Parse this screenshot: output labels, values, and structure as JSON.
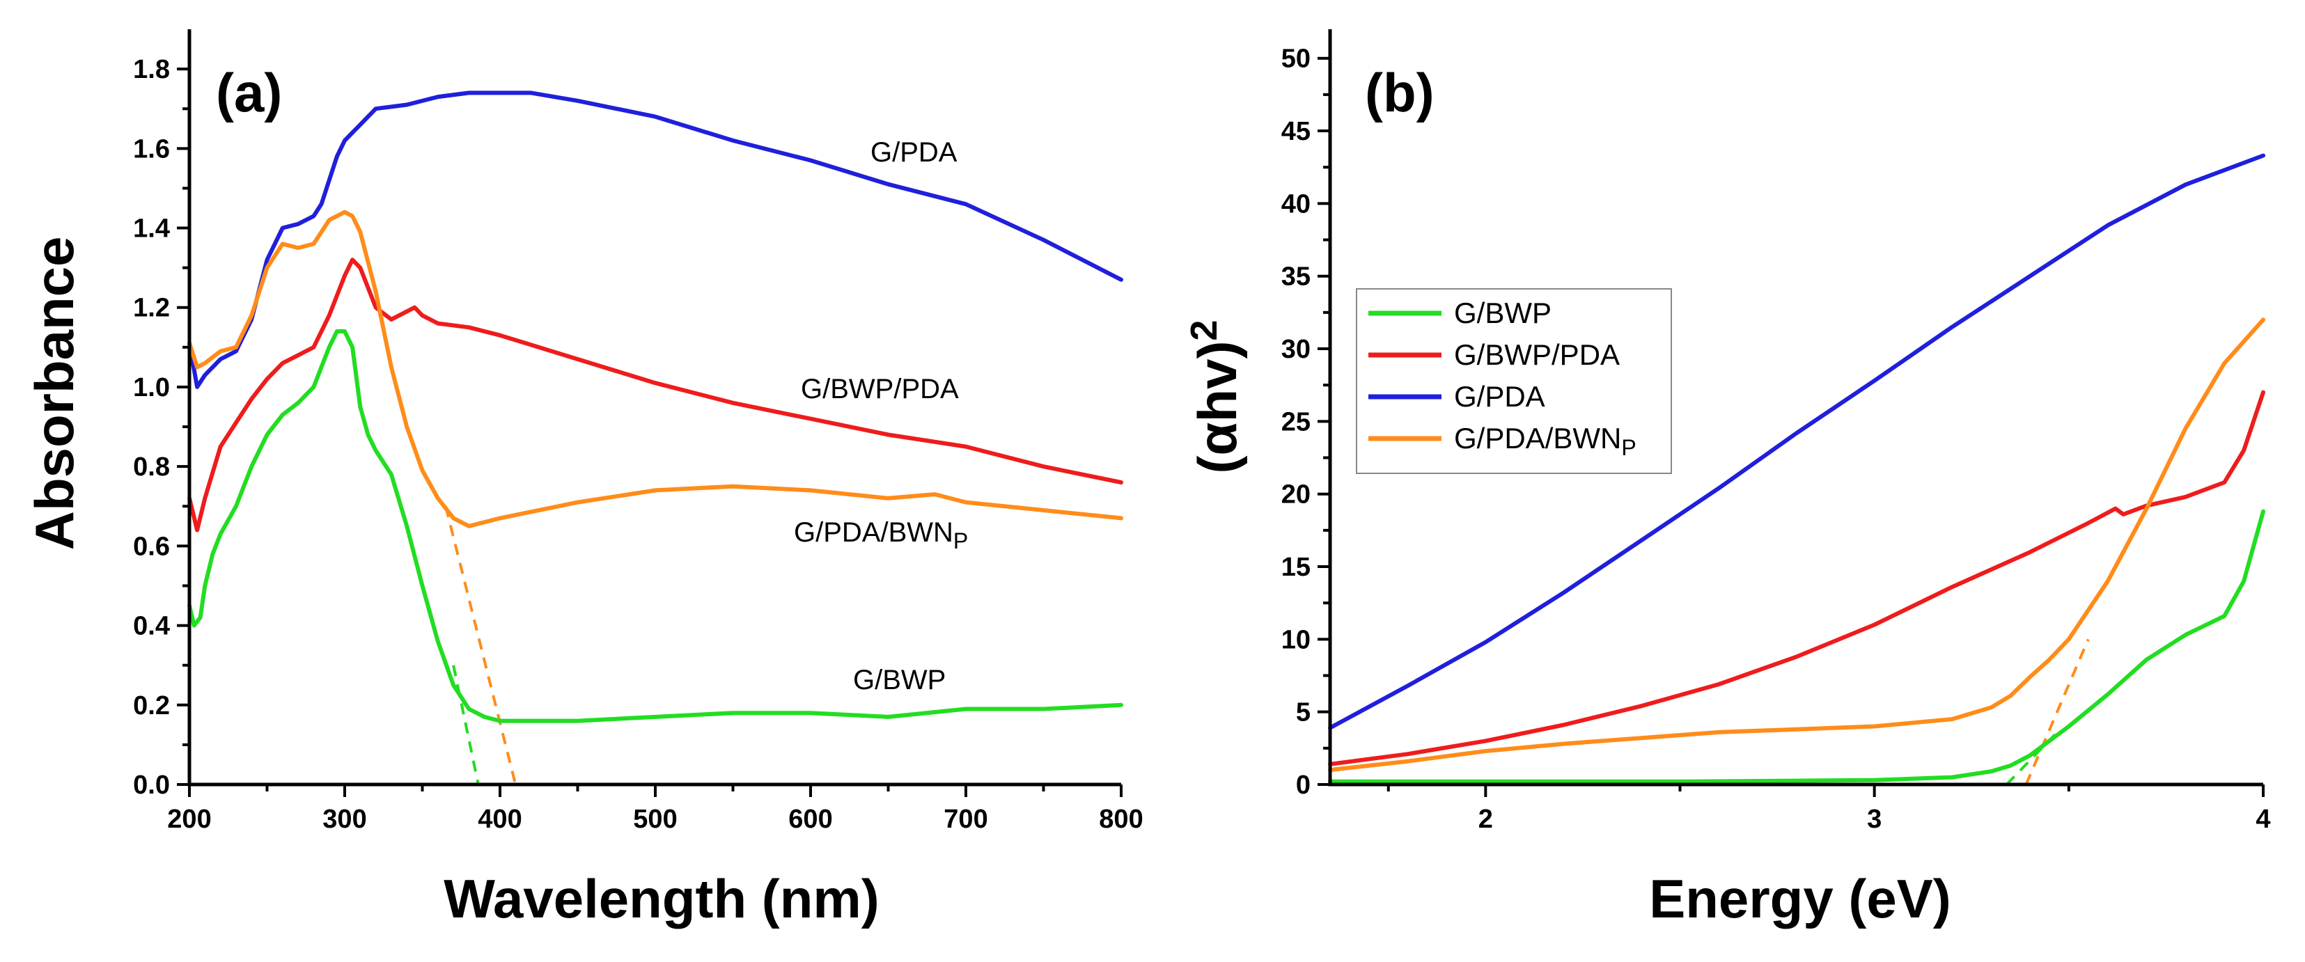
{
  "chart_data": [
    {
      "type": "line",
      "panel": "(a)",
      "xlabel": "Wavelength (nm)",
      "ylabel": "Absorbance",
      "xlim": [
        200,
        800
      ],
      "ylim": [
        0,
        1.9
      ],
      "xticks": [
        200,
        300,
        400,
        500,
        600,
        700,
        800
      ],
      "yticks": [
        0.0,
        0.2,
        0.4,
        0.6,
        0.8,
        1.0,
        1.2,
        1.4,
        1.6,
        1.8
      ],
      "xtick_labels": [
        "200",
        "300",
        "400",
        "500",
        "600",
        "700",
        "800"
      ],
      "ytick_labels": [
        "0.0",
        "0.2",
        "0.4",
        "0.6",
        "0.8",
        "1.0",
        "1.2",
        "1.4",
        "1.6",
        "1.8"
      ],
      "series": [
        {
          "name": "G/PDA",
          "label": "G/PDA",
          "color": "#1f1fdc",
          "x": [
            200,
            205,
            210,
            220,
            230,
            240,
            250,
            260,
            270,
            280,
            285,
            290,
            295,
            300,
            310,
            320,
            340,
            360,
            380,
            400,
            420,
            450,
            500,
            550,
            600,
            650,
            700,
            750,
            800
          ],
          "y": [
            1.11,
            1.0,
            1.03,
            1.07,
            1.09,
            1.17,
            1.32,
            1.4,
            1.41,
            1.43,
            1.46,
            1.52,
            1.58,
            1.62,
            1.66,
            1.7,
            1.71,
            1.73,
            1.74,
            1.74,
            1.74,
            1.72,
            1.68,
            1.62,
            1.57,
            1.51,
            1.46,
            1.37,
            1.27
          ]
        },
        {
          "name": "G/BWP/PDA",
          "label": "G/BWP/PDA",
          "color": "#ee1c1c",
          "x": [
            200,
            205,
            210,
            220,
            230,
            240,
            250,
            260,
            270,
            280,
            290,
            300,
            305,
            310,
            320,
            330,
            340,
            345,
            350,
            360,
            380,
            400,
            450,
            500,
            550,
            600,
            650,
            700,
            750,
            800
          ],
          "y": [
            0.72,
            0.64,
            0.72,
            0.85,
            0.91,
            0.97,
            1.02,
            1.06,
            1.08,
            1.1,
            1.18,
            1.28,
            1.32,
            1.3,
            1.2,
            1.17,
            1.19,
            1.2,
            1.18,
            1.16,
            1.15,
            1.13,
            1.07,
            1.01,
            0.96,
            0.92,
            0.88,
            0.85,
            0.8,
            0.76
          ]
        },
        {
          "name": "G/PDA/BWNP",
          "label": "G/PDA/BWN",
          "label_sub": "P",
          "color": "#ff8c1a",
          "x": [
            200,
            205,
            210,
            220,
            230,
            240,
            250,
            260,
            270,
            280,
            290,
            300,
            305,
            310,
            320,
            330,
            340,
            350,
            360,
            370,
            380,
            390,
            400,
            450,
            500,
            550,
            600,
            650,
            680,
            700,
            750,
            800
          ],
          "y": [
            1.11,
            1.05,
            1.06,
            1.09,
            1.1,
            1.18,
            1.3,
            1.36,
            1.35,
            1.36,
            1.42,
            1.44,
            1.43,
            1.39,
            1.24,
            1.05,
            0.9,
            0.79,
            0.72,
            0.67,
            0.65,
            0.66,
            0.67,
            0.71,
            0.74,
            0.75,
            0.74,
            0.72,
            0.73,
            0.71,
            0.69,
            0.67
          ]
        },
        {
          "name": "G/BWP",
          "label": "G/BWP",
          "color": "#22dd22",
          "x": [
            200,
            203,
            207,
            210,
            215,
            220,
            230,
            240,
            250,
            260,
            270,
            280,
            290,
            295,
            300,
            305,
            310,
            315,
            320,
            330,
            340,
            350,
            360,
            370,
            380,
            390,
            400,
            450,
            500,
            550,
            600,
            650,
            700,
            750,
            800
          ],
          "y": [
            0.45,
            0.4,
            0.42,
            0.5,
            0.58,
            0.63,
            0.7,
            0.8,
            0.88,
            0.93,
            0.96,
            1.0,
            1.1,
            1.14,
            1.14,
            1.1,
            0.95,
            0.88,
            0.84,
            0.78,
            0.65,
            0.5,
            0.36,
            0.25,
            0.19,
            0.17,
            0.16,
            0.16,
            0.17,
            0.18,
            0.18,
            0.17,
            0.19,
            0.19,
            0.2
          ]
        }
      ],
      "tangents": [
        {
          "series": "G/BWP",
          "color": "#22dd22",
          "x": [
            370,
            386
          ],
          "y": [
            0.3,
            0.0
          ]
        },
        {
          "series": "G/PDA/BWNP",
          "color": "#ff8c1a",
          "x": [
            365,
            410
          ],
          "y": [
            0.7,
            0.0
          ]
        }
      ]
    },
    {
      "type": "line",
      "panel": "(b)",
      "xlabel": "Energy (eV)",
      "ylabel_main": "(αhv)",
      "ylabel_sup": "2",
      "xlim": [
        1.6,
        4.0
      ],
      "ylim": [
        0,
        52
      ],
      "xticks": [
        2,
        3,
        4
      ],
      "yticks": [
        0,
        5,
        10,
        15,
        20,
        25,
        30,
        35,
        40,
        45,
        50
      ],
      "xtick_labels": [
        "2",
        "3",
        "4"
      ],
      "ytick_labels": [
        "0",
        "5",
        "10",
        "15",
        "20",
        "25",
        "30",
        "35",
        "40",
        "45",
        "50"
      ],
      "series": [
        {
          "name": "G/BWP",
          "label": "G/BWP",
          "color": "#22dd22",
          "x": [
            1.6,
            2.0,
            2.5,
            3.0,
            3.2,
            3.3,
            3.35,
            3.4,
            3.5,
            3.6,
            3.7,
            3.8,
            3.9,
            3.95,
            4.0
          ],
          "y": [
            0.2,
            0.2,
            0.2,
            0.3,
            0.5,
            0.9,
            1.3,
            2.0,
            4.0,
            6.2,
            8.6,
            10.3,
            11.6,
            14.0,
            18.8
          ]
        },
        {
          "name": "G/BWP/PDA",
          "label": "G/BWP/PDA",
          "color": "#ee1c1c",
          "x": [
            1.6,
            1.8,
            2.0,
            2.2,
            2.4,
            2.6,
            2.8,
            3.0,
            3.2,
            3.4,
            3.55,
            3.62,
            3.64,
            3.7,
            3.8,
            3.9,
            3.95,
            4.0
          ],
          "y": [
            1.4,
            2.1,
            3.0,
            4.1,
            5.4,
            6.9,
            8.8,
            11.0,
            13.6,
            16.0,
            18.0,
            19.0,
            18.6,
            19.2,
            19.8,
            20.8,
            23.0,
            27.0
          ]
        },
        {
          "name": "G/PDA",
          "label": "G/PDA",
          "color": "#1f1fdc",
          "x": [
            1.6,
            1.8,
            2.0,
            2.2,
            2.4,
            2.6,
            2.8,
            3.0,
            3.2,
            3.4,
            3.6,
            3.8,
            4.0
          ],
          "y": [
            3.9,
            6.8,
            9.8,
            13.2,
            16.8,
            20.4,
            24.2,
            27.8,
            31.5,
            35.0,
            38.5,
            41.3,
            43.3
          ]
        },
        {
          "name": "G/PDA/BWNP",
          "label": "G/PDA/BWN",
          "label_sub": "P",
          "color": "#ff8c1a",
          "x": [
            1.6,
            1.8,
            2.0,
            2.2,
            2.4,
            2.6,
            2.8,
            3.0,
            3.2,
            3.3,
            3.35,
            3.4,
            3.45,
            3.5,
            3.6,
            3.7,
            3.8,
            3.9,
            4.0
          ],
          "y": [
            1.0,
            1.6,
            2.3,
            2.8,
            3.2,
            3.6,
            3.8,
            4.0,
            4.5,
            5.3,
            6.1,
            7.4,
            8.6,
            10.0,
            14.0,
            19.0,
            24.5,
            29.0,
            32.0
          ]
        }
      ],
      "tangents": [
        {
          "series": "G/BWP",
          "color": "#22dd22",
          "x": [
            3.34,
            3.47
          ],
          "y": [
            0.0,
            3.6
          ]
        },
        {
          "series": "G/PDA/BWNP",
          "color": "#ff8c1a",
          "x": [
            3.39,
            3.55
          ],
          "y": [
            0.0,
            10.0
          ]
        }
      ],
      "legend": {
        "position": "upper-left",
        "items": [
          {
            "label": "G/BWP",
            "color": "#22dd22"
          },
          {
            "label": "G/BWP/PDA",
            "color": "#ee1c1c"
          },
          {
            "label": "G/PDA",
            "color": "#1f1fdc"
          },
          {
            "label": "G/PDA/BWN",
            "sub": "P",
            "color": "#ff8c1a"
          }
        ]
      }
    }
  ]
}
